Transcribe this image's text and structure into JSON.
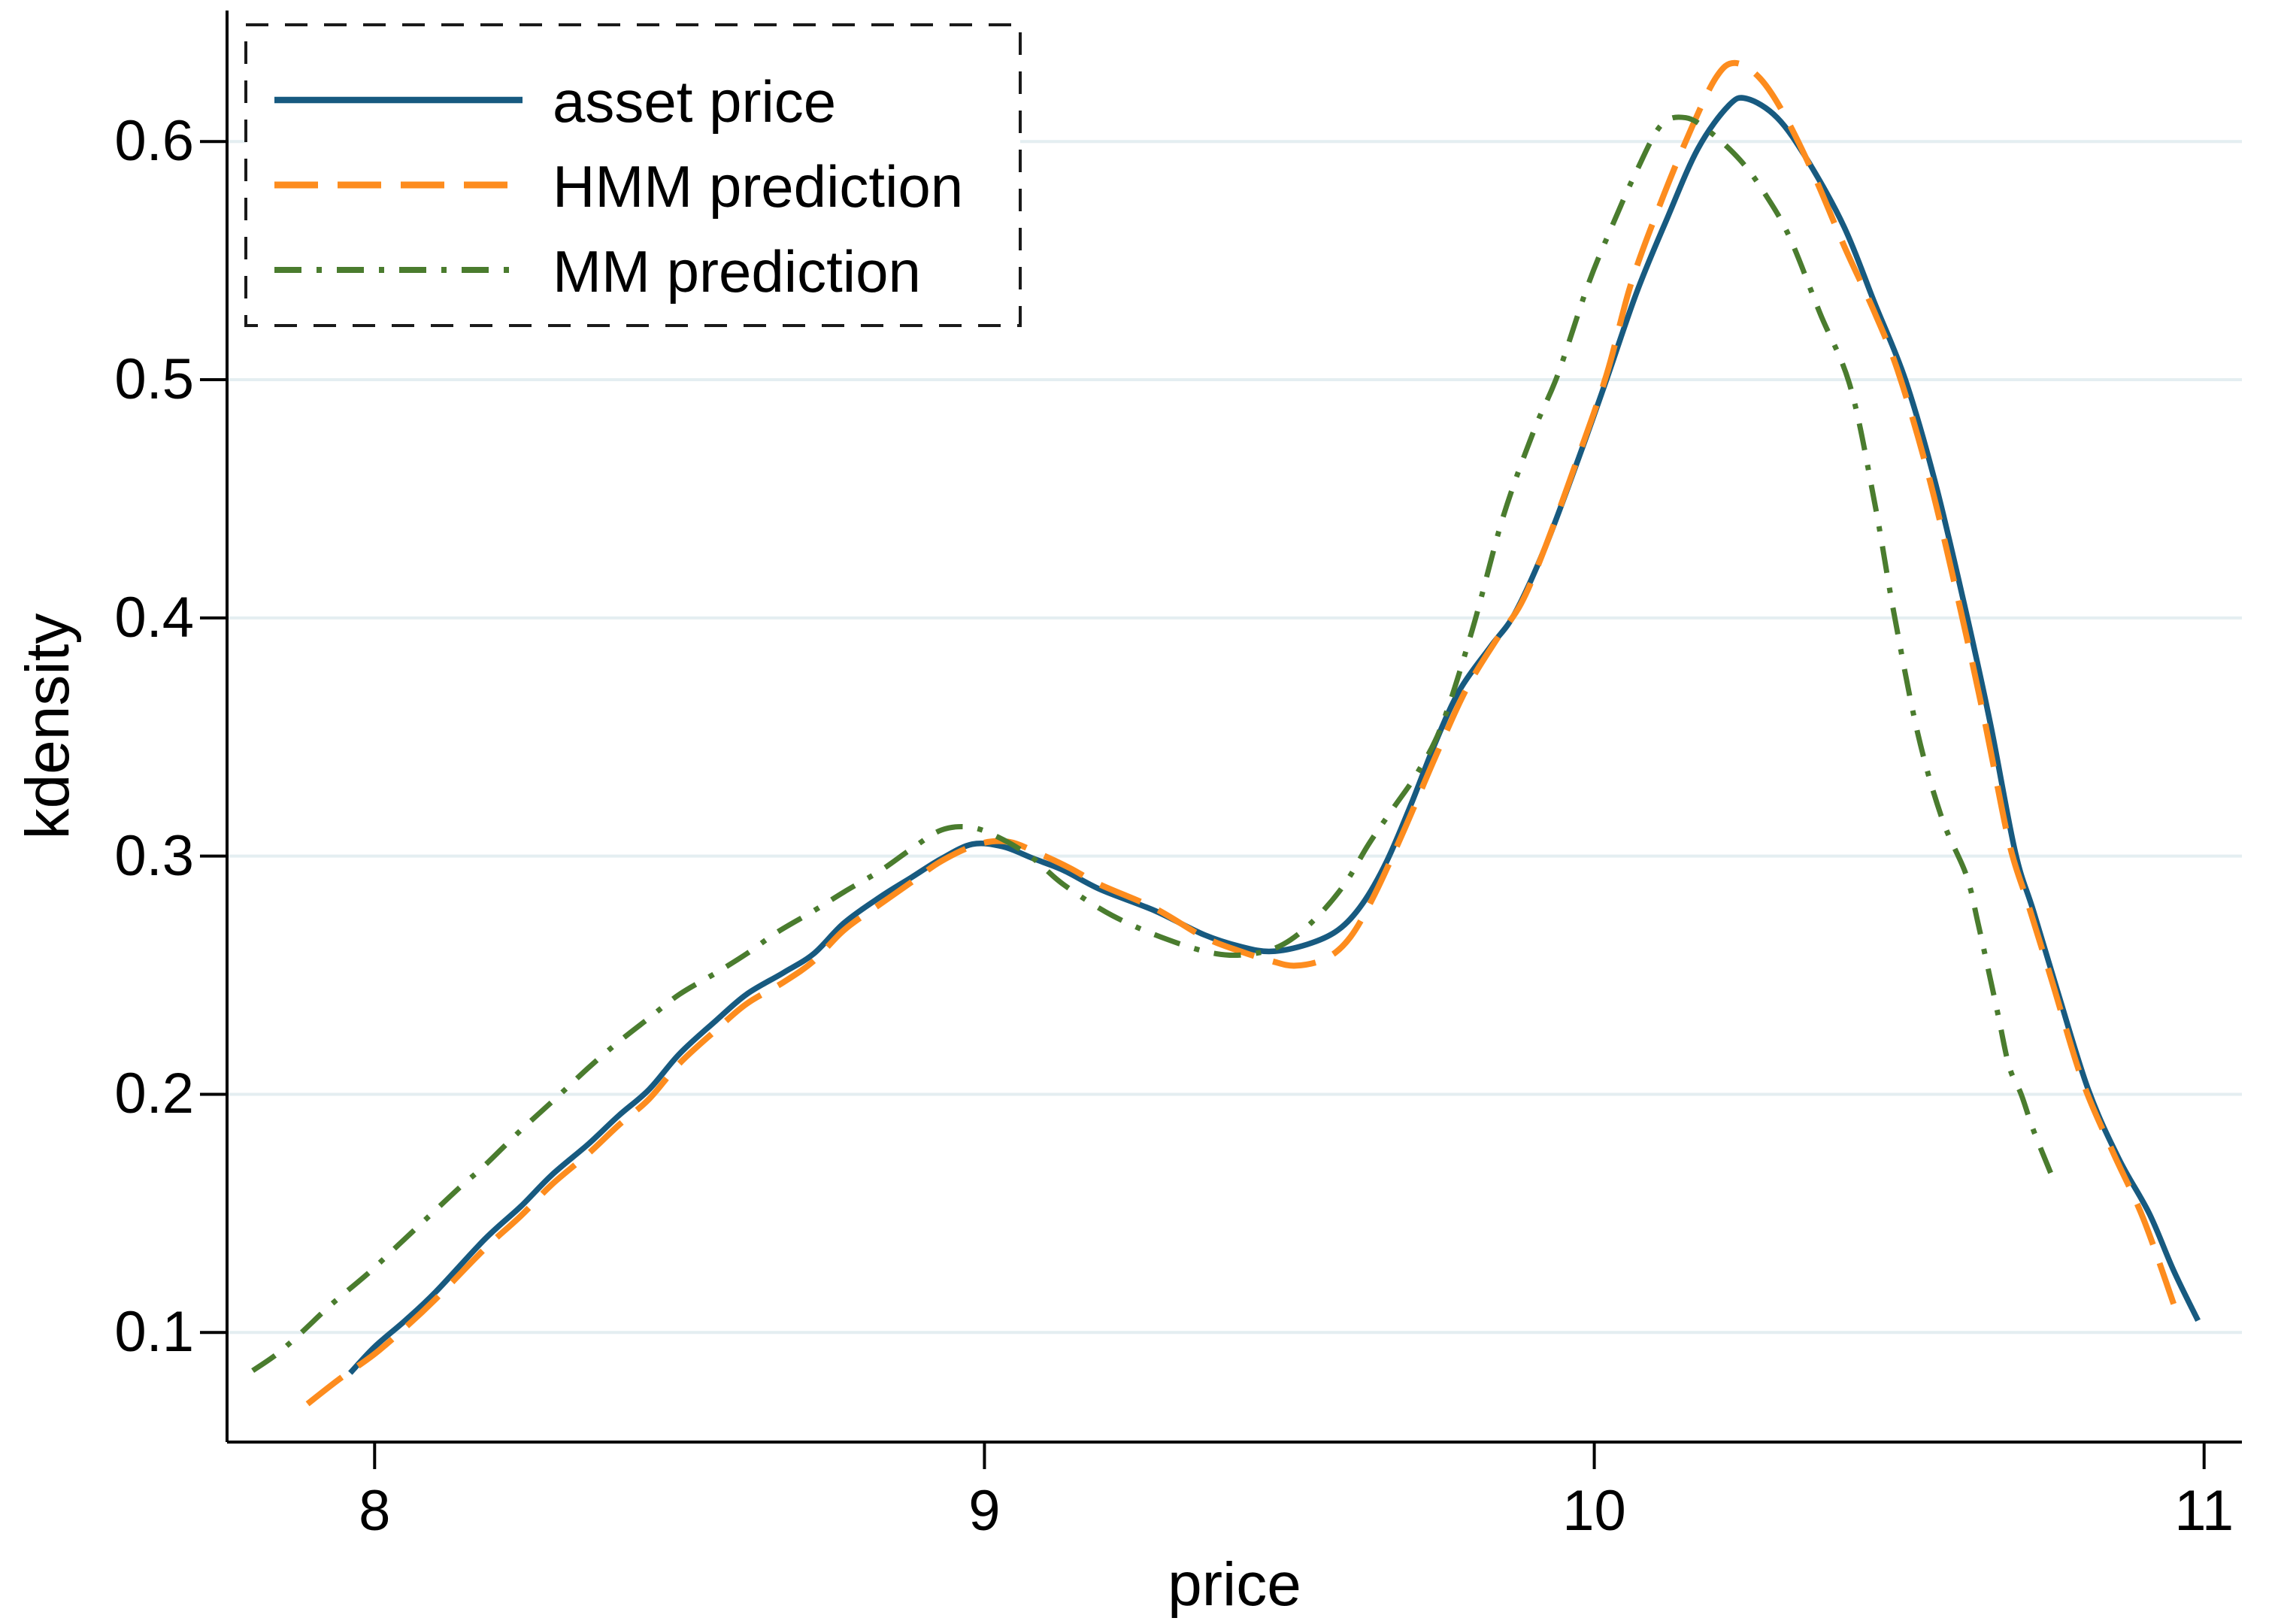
{
  "axes": {
    "x_label": "price",
    "y_label": "kdensity"
  },
  "legend": {
    "items": [
      {
        "label": "asset price"
      },
      {
        "label": "HMM prediction"
      },
      {
        "label": "MM prediction"
      }
    ]
  },
  "colors": {
    "asset_price": "#175a80",
    "hmm_prediction": "#fd8c1e",
    "mm_prediction": "#4a7c2e",
    "gridline": "#e4eef1",
    "axis": "#000000",
    "legend_border": "#1a1a1a",
    "background": "#ffffff"
  },
  "chart_data": {
    "type": "line",
    "title": "",
    "xlabel": "price",
    "ylabel": "kdensity",
    "xlim": [
      7.758,
      11.062
    ],
    "ylim": [
      0.054,
      0.655
    ],
    "grid": "horizontal",
    "legend_position": "top-left-inside-dashed-box",
    "x_ticks": [
      {
        "value": 8,
        "label": "8"
      },
      {
        "value": 9,
        "label": "9"
      },
      {
        "value": 10,
        "label": "10"
      },
      {
        "value": 11,
        "label": "11"
      }
    ],
    "y_ticks": [
      {
        "value": 0.1,
        "label": "0.1"
      },
      {
        "value": 0.2,
        "label": "0.2"
      },
      {
        "value": 0.3,
        "label": "0.3"
      },
      {
        "value": 0.4,
        "label": "0.4"
      },
      {
        "value": 0.5,
        "label": "0.5"
      },
      {
        "value": 0.6,
        "label": "0.6"
      }
    ],
    "series": [
      {
        "name": "asset price",
        "color": "#175a80",
        "line_style": "solid",
        "points": [
          [
            7.96,
            0.083
          ],
          [
            8.0,
            0.094
          ],
          [
            8.05,
            0.105
          ],
          [
            8.1,
            0.117
          ],
          [
            8.18,
            0.139
          ],
          [
            8.24,
            0.153
          ],
          [
            8.29,
            0.166
          ],
          [
            8.35,
            0.179
          ],
          [
            8.4,
            0.191
          ],
          [
            8.45,
            0.202
          ],
          [
            8.5,
            0.217
          ],
          [
            8.56,
            0.231
          ],
          [
            8.61,
            0.242
          ],
          [
            8.67,
            0.251
          ],
          [
            8.72,
            0.259
          ],
          [
            8.77,
            0.272
          ],
          [
            8.83,
            0.283
          ],
          [
            8.88,
            0.291
          ],
          [
            8.93,
            0.299
          ],
          [
            8.98,
            0.305
          ],
          [
            9.03,
            0.304
          ],
          [
            9.08,
            0.299
          ],
          [
            9.13,
            0.294
          ],
          [
            9.19,
            0.286
          ],
          [
            9.28,
            0.277
          ],
          [
            9.36,
            0.267
          ],
          [
            9.42,
            0.262
          ],
          [
            9.47,
            0.26
          ],
          [
            9.53,
            0.263
          ],
          [
            9.58,
            0.269
          ],
          [
            9.62,
            0.28
          ],
          [
            9.66,
            0.298
          ],
          [
            9.7,
            0.322
          ],
          [
            9.74,
            0.348
          ],
          [
            9.78,
            0.37
          ],
          [
            9.83,
            0.388
          ],
          [
            9.87,
            0.402
          ],
          [
            9.92,
            0.43
          ],
          [
            9.97,
            0.464
          ],
          [
            10.02,
            0.5
          ],
          [
            10.07,
            0.537
          ],
          [
            10.12,
            0.568
          ],
          [
            10.17,
            0.597
          ],
          [
            10.22,
            0.615
          ],
          [
            10.25,
            0.618
          ],
          [
            10.3,
            0.61
          ],
          [
            10.35,
            0.592
          ],
          [
            10.41,
            0.564
          ],
          [
            10.46,
            0.532
          ],
          [
            10.51,
            0.5
          ],
          [
            10.56,
            0.456
          ],
          [
            10.61,
            0.402
          ],
          [
            10.65,
            0.355
          ],
          [
            10.69,
            0.302
          ],
          [
            10.72,
            0.277
          ],
          [
            10.76,
            0.243
          ],
          [
            10.81,
            0.202
          ],
          [
            10.86,
            0.173
          ],
          [
            10.91,
            0.15
          ],
          [
            10.95,
            0.126
          ],
          [
            10.99,
            0.105
          ]
        ]
      },
      {
        "name": "HMM prediction",
        "color": "#fd8c1e",
        "line_style": "dashed",
        "points": [
          [
            7.89,
            0.07
          ],
          [
            7.94,
            0.08
          ],
          [
            8.0,
            0.091
          ],
          [
            8.05,
            0.102
          ],
          [
            8.1,
            0.114
          ],
          [
            8.18,
            0.135
          ],
          [
            8.24,
            0.149
          ],
          [
            8.29,
            0.162
          ],
          [
            8.35,
            0.175
          ],
          [
            8.4,
            0.187
          ],
          [
            8.45,
            0.198
          ],
          [
            8.5,
            0.213
          ],
          [
            8.56,
            0.227
          ],
          [
            8.61,
            0.238
          ],
          [
            8.67,
            0.247
          ],
          [
            8.72,
            0.256
          ],
          [
            8.77,
            0.269
          ],
          [
            8.83,
            0.28
          ],
          [
            8.88,
            0.289
          ],
          [
            8.93,
            0.298
          ],
          [
            8.99,
            0.305
          ],
          [
            9.04,
            0.306
          ],
          [
            9.09,
            0.301
          ],
          [
            9.14,
            0.295
          ],
          [
            9.19,
            0.288
          ],
          [
            9.28,
            0.278
          ],
          [
            9.36,
            0.266
          ],
          [
            9.42,
            0.26
          ],
          [
            9.47,
            0.256
          ],
          [
            9.51,
            0.254
          ],
          [
            9.56,
            0.257
          ],
          [
            9.6,
            0.266
          ],
          [
            9.64,
            0.284
          ],
          [
            9.69,
            0.312
          ],
          [
            9.74,
            0.342
          ],
          [
            9.79,
            0.37
          ],
          [
            9.84,
            0.391
          ],
          [
            9.88,
            0.406
          ],
          [
            9.92,
            0.43
          ],
          [
            9.97,
            0.465
          ],
          [
            10.02,
            0.502
          ],
          [
            10.06,
            0.54
          ],
          [
            10.11,
            0.575
          ],
          [
            10.16,
            0.606
          ],
          [
            10.2,
            0.627
          ],
          [
            10.23,
            0.633
          ],
          [
            10.27,
            0.627
          ],
          [
            10.31,
            0.612
          ],
          [
            10.36,
            0.586
          ],
          [
            10.41,
            0.556
          ],
          [
            10.46,
            0.528
          ],
          [
            10.5,
            0.502
          ],
          [
            10.55,
            0.458
          ],
          [
            10.6,
            0.404
          ],
          [
            10.64,
            0.357
          ],
          [
            10.68,
            0.306
          ],
          [
            10.71,
            0.281
          ],
          [
            10.75,
            0.248
          ],
          [
            10.8,
            0.206
          ],
          [
            10.85,
            0.176
          ],
          [
            10.9,
            0.148
          ],
          [
            10.95,
            0.112
          ]
        ]
      },
      {
        "name": "MM prediction",
        "color": "#4a7c2e",
        "line_style": "dash-dot",
        "points": [
          [
            7.8,
            0.084
          ],
          [
            7.84,
            0.091
          ],
          [
            7.88,
            0.1
          ],
          [
            7.93,
            0.112
          ],
          [
            7.99,
            0.125
          ],
          [
            8.04,
            0.137
          ],
          [
            8.09,
            0.149
          ],
          [
            8.14,
            0.161
          ],
          [
            8.18,
            0.17
          ],
          [
            8.24,
            0.185
          ],
          [
            8.3,
            0.199
          ],
          [
            8.35,
            0.211
          ],
          [
            8.4,
            0.222
          ],
          [
            8.45,
            0.232
          ],
          [
            8.5,
            0.242
          ],
          [
            8.56,
            0.251
          ],
          [
            8.61,
            0.259
          ],
          [
            8.66,
            0.268
          ],
          [
            8.72,
            0.277
          ],
          [
            8.77,
            0.285
          ],
          [
            8.83,
            0.294
          ],
          [
            8.88,
            0.303
          ],
          [
            8.93,
            0.311
          ],
          [
            8.98,
            0.312
          ],
          [
            9.03,
            0.307
          ],
          [
            9.08,
            0.299
          ],
          [
            9.13,
            0.288
          ],
          [
            9.21,
            0.275
          ],
          [
            9.3,
            0.265
          ],
          [
            9.38,
            0.259
          ],
          [
            9.44,
            0.259
          ],
          [
            9.49,
            0.263
          ],
          [
            9.54,
            0.273
          ],
          [
            9.59,
            0.288
          ],
          [
            9.63,
            0.305
          ],
          [
            9.67,
            0.32
          ],
          [
            9.71,
            0.335
          ],
          [
            9.75,
            0.355
          ],
          [
            9.8,
            0.395
          ],
          [
            9.85,
            0.442
          ],
          [
            9.9,
            0.478
          ],
          [
            9.94,
            0.502
          ],
          [
            9.99,
            0.54
          ],
          [
            10.03,
            0.565
          ],
          [
            10.07,
            0.588
          ],
          [
            10.11,
            0.607
          ],
          [
            10.15,
            0.61
          ],
          [
            10.19,
            0.604
          ],
          [
            10.24,
            0.592
          ],
          [
            10.28,
            0.578
          ],
          [
            10.32,
            0.56
          ],
          [
            10.37,
            0.528
          ],
          [
            10.42,
            0.497
          ],
          [
            10.46,
            0.448
          ],
          [
            10.49,
            0.404
          ],
          [
            10.53,
            0.352
          ],
          [
            10.57,
            0.316
          ],
          [
            10.61,
            0.292
          ],
          [
            10.63,
            0.271
          ],
          [
            10.66,
            0.236
          ],
          [
            10.68,
            0.212
          ],
          [
            10.7,
            0.2
          ],
          [
            10.72,
            0.185
          ],
          [
            10.75,
            0.166
          ]
        ]
      }
    ]
  }
}
